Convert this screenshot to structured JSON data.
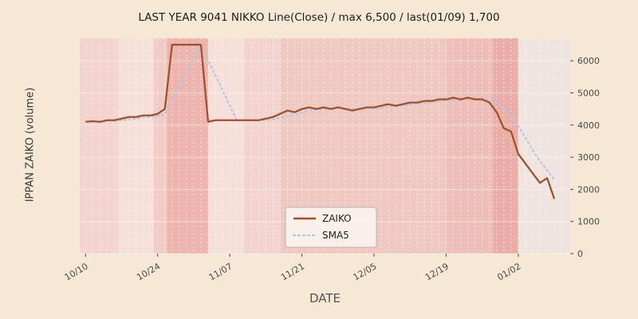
{
  "chart_data": {
    "type": "line",
    "title": "LAST YEAR 9041 NIKKO Line(Close) / max 6,500 / last(01/09) 1,700",
    "xlabel": "DATE",
    "ylabel": "IPPAN ZAIKO (volume)",
    "ylim": [
      0,
      6700
    ],
    "yticks": [
      0,
      1000,
      2000,
      3000,
      4000,
      5000,
      6000
    ],
    "ytick_side": "right",
    "grid": "vertical-daily-dashed-white",
    "legend_position": "bottom-center",
    "max_value": 6500,
    "last_label": "last(01/09) 1,700",
    "xticks": [
      {
        "index": 0,
        "label": "10/10"
      },
      {
        "index": 10,
        "label": "10/24"
      },
      {
        "index": 20,
        "label": "11/07"
      },
      {
        "index": 30,
        "label": "11/21"
      },
      {
        "index": 40,
        "label": "12/05"
      },
      {
        "index": 50,
        "label": "12/19"
      },
      {
        "index": 60,
        "label": "01/02"
      }
    ],
    "xrange": [
      -0.8,
      67.2
    ],
    "series": [
      {
        "name": "ZAIKO",
        "style": "solid",
        "color": "#a0522d",
        "values": [
          4100,
          4120,
          4100,
          4150,
          4150,
          4200,
          4250,
          4250,
          4300,
          4300,
          4350,
          4500,
          6500,
          6500,
          6500,
          6500,
          6500,
          4100,
          4150,
          4150,
          4150,
          4150,
          4150,
          4150,
          4150,
          4200,
          4250,
          4350,
          4450,
          4400,
          4500,
          4550,
          4500,
          4550,
          4500,
          4550,
          4500,
          4450,
          4500,
          4550,
          4550,
          4600,
          4650,
          4600,
          4650,
          4700,
          4700,
          4750,
          4750,
          4800,
          4800,
          4850,
          4800,
          4850,
          4800,
          4800,
          4700,
          4400,
          3900,
          3800,
          3100,
          2800,
          2500,
          2200,
          2350,
          1700
        ]
      },
      {
        "name": "SMA5",
        "style": "dotted",
        "color": "#a9c9e8",
        "derived_from": "ZAIKO",
        "sma_window": 5
      }
    ],
    "bands": [
      {
        "from": -0.8,
        "to": 4.5,
        "color": "#f2d3cd"
      },
      {
        "from": 4.5,
        "to": 9.5,
        "color": "#f6ded9"
      },
      {
        "from": 9.5,
        "to": 11.3,
        "color": "#f1cbc5"
      },
      {
        "from": 11.3,
        "to": 17.0,
        "color": "#edb5ae"
      },
      {
        "from": 17.0,
        "to": 22.0,
        "color": "#f6ded9"
      },
      {
        "from": 22.0,
        "to": 27.0,
        "color": "#f2d3cd"
      },
      {
        "from": 27.0,
        "to": 50.0,
        "color": "#f0c8c2"
      },
      {
        "from": 50.0,
        "to": 56.5,
        "color": "#eebfb9"
      },
      {
        "from": 56.5,
        "to": 60.0,
        "color": "#ebaea7"
      },
      {
        "from": 60.0,
        "to": 67.2,
        "color": "#f0e4df"
      }
    ],
    "colors": {
      "figure_background": "#f7e8d6",
      "zaiko_line": "#a0522d",
      "sma5_line": "#a9c9e8",
      "tick_label": "#4a4a4a",
      "legend_background": "#fdf6f0",
      "legend_border": "#b5b5b5"
    }
  }
}
